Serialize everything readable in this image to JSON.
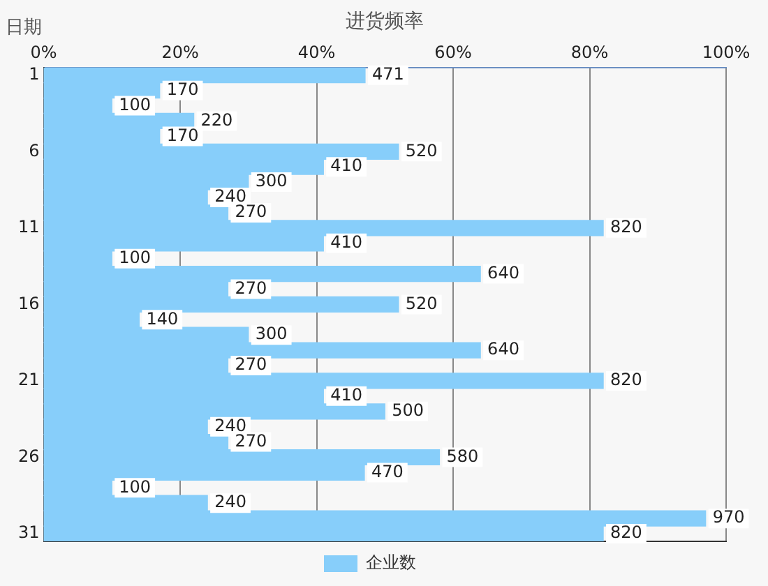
{
  "chart_data": {
    "type": "bar",
    "orientation": "horizontal",
    "xlabel": "进货频率",
    "ylabel": "日期",
    "categories": [
      "1",
      null,
      null,
      null,
      null,
      "6",
      null,
      null,
      null,
      null,
      "11",
      null,
      null,
      null,
      null,
      "16",
      null,
      null,
      null,
      null,
      "21",
      null,
      null,
      null,
      null,
      "26",
      null,
      null,
      null,
      null,
      "31"
    ],
    "series": [
      {
        "name": "企业数",
        "color": "#87cefa",
        "values": [
          471,
          170,
          100,
          220,
          170,
          520,
          410,
          300,
          240,
          270,
          820,
          410,
          100,
          640,
          270,
          520,
          140,
          300,
          640,
          270,
          820,
          410,
          500,
          240,
          270,
          580,
          470,
          100,
          240,
          970,
          820
        ]
      }
    ],
    "xlim": [
      0,
      1000
    ],
    "x2lim": [
      0,
      100
    ],
    "x2ticks": [
      {
        "value": 0,
        "label": "0%"
      },
      {
        "value": 20,
        "label": "20%"
      },
      {
        "value": 40,
        "label": "40%"
      },
      {
        "value": 60,
        "label": "60%"
      },
      {
        "value": 80,
        "label": "80%"
      },
      {
        "value": 100,
        "label": "100%"
      }
    ],
    "grid": "x",
    "data_labels": true,
    "legend": "bottom"
  }
}
